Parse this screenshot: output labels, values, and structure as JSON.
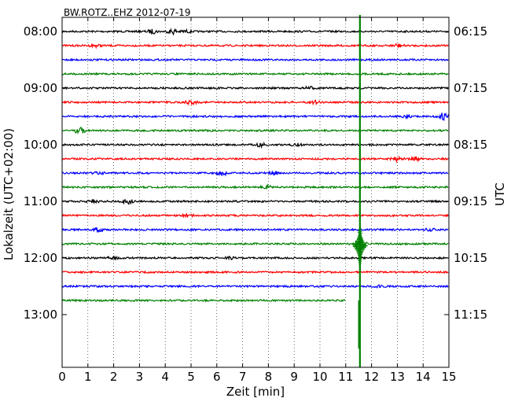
{
  "chart_data": {
    "type": "line",
    "title": "BW.ROTZ..EHZ 2012-07-19",
    "xlabel": "Zeit  [min]",
    "ylabel_left": "Lokalzeit (UTC+02:00)",
    "ylabel_right": "UTC",
    "xlim": [
      0,
      15
    ],
    "x_ticks": [
      "0",
      "1",
      "2",
      "3",
      "4",
      "5",
      "6",
      "7",
      "8",
      "9",
      "10",
      "11",
      "12",
      "13",
      "14",
      "15"
    ],
    "x_grid": "dotted",
    "left_ticks": [
      {
        "label": "08:00",
        "row": 0
      },
      {
        "label": "09:00",
        "row": 4
      },
      {
        "label": "10:00",
        "row": 8
      },
      {
        "label": "11:00",
        "row": 12
      },
      {
        "label": "12:00",
        "row": 16
      },
      {
        "label": "13:00",
        "row": 20
      }
    ],
    "right_ticks": [
      {
        "label": "06:15",
        "row": 0
      },
      {
        "label": "07:15",
        "row": 4
      },
      {
        "label": "08:15",
        "row": 8
      },
      {
        "label": "09:15",
        "row": 12
      },
      {
        "label": "10:15",
        "row": 16
      },
      {
        "label": "11:15",
        "row": 20
      }
    ],
    "row_count": 24,
    "colors": [
      "#000000",
      "#ff0000",
      "#0000ff",
      "#008000"
    ],
    "traces": [
      {
        "row": 0,
        "color": "#000000",
        "x_end": 15,
        "events": [
          {
            "x": 3.5,
            "amp": 0.3
          },
          {
            "x": 4.3,
            "amp": 0.4
          },
          {
            "x": 4.8,
            "amp": 0.2
          }
        ]
      },
      {
        "row": 1,
        "color": "#ff0000",
        "x_end": 15,
        "events": [
          {
            "x": 1.3,
            "amp": 0.2
          },
          {
            "x": 13.0,
            "amp": 0.3
          }
        ]
      },
      {
        "row": 2,
        "color": "#0000ff",
        "x_end": 15,
        "events": []
      },
      {
        "row": 3,
        "color": "#008000",
        "x_end": 15,
        "events": []
      },
      {
        "row": 4,
        "color": "#000000",
        "x_end": 15,
        "events": [
          {
            "x": 9.6,
            "amp": 0.2
          }
        ]
      },
      {
        "row": 5,
        "color": "#ff0000",
        "x_end": 15,
        "events": [
          {
            "x": 5.0,
            "amp": 0.3
          },
          {
            "x": 9.8,
            "amp": 0.2
          }
        ]
      },
      {
        "row": 6,
        "color": "#0000ff",
        "x_end": 15,
        "events": [
          {
            "x": 13.3,
            "amp": 0.2
          },
          {
            "x": 14.8,
            "amp": 0.6
          }
        ]
      },
      {
        "row": 7,
        "color": "#008000",
        "x_end": 15,
        "events": [
          {
            "x": 0.7,
            "amp": 0.5
          }
        ]
      },
      {
        "row": 8,
        "color": "#000000",
        "x_end": 15,
        "events": [
          {
            "x": 7.7,
            "amp": 0.3
          },
          {
            "x": 9.1,
            "amp": 0.2
          }
        ]
      },
      {
        "row": 9,
        "color": "#ff0000",
        "x_end": 15,
        "events": [
          {
            "x": 13.0,
            "amp": 0.4
          },
          {
            "x": 13.7,
            "amp": 0.3
          }
        ]
      },
      {
        "row": 10,
        "color": "#0000ff",
        "x_end": 15,
        "events": [
          {
            "x": 1.4,
            "amp": 0.2
          },
          {
            "x": 6.2,
            "amp": 0.4
          },
          {
            "x": 8.2,
            "amp": 0.3
          }
        ]
      },
      {
        "row": 11,
        "color": "#008000",
        "x_end": 15,
        "events": [
          {
            "x": 7.9,
            "amp": 0.3
          }
        ]
      },
      {
        "row": 12,
        "color": "#000000",
        "x_end": 15,
        "events": [
          {
            "x": 1.2,
            "amp": 0.2
          },
          {
            "x": 2.5,
            "amp": 0.5
          }
        ]
      },
      {
        "row": 13,
        "color": "#ff0000",
        "x_end": 15,
        "events": [
          {
            "x": 4.9,
            "amp": 0.2
          }
        ]
      },
      {
        "row": 14,
        "color": "#0000ff",
        "x_end": 15,
        "events": [
          {
            "x": 1.4,
            "amp": 0.3
          },
          {
            "x": 14.3,
            "amp": 0.2
          }
        ]
      },
      {
        "row": 15,
        "color": "#008000",
        "x_end": 15,
        "events": [
          {
            "x": 11.55,
            "amp": 1.2
          }
        ]
      },
      {
        "row": 16,
        "color": "#000000",
        "x_end": 15,
        "events": [
          {
            "x": 2.0,
            "amp": 0.2
          },
          {
            "x": 6.5,
            "amp": 0.2
          }
        ]
      },
      {
        "row": 17,
        "color": "#ff0000",
        "x_end": 15,
        "events": []
      },
      {
        "row": 18,
        "color": "#0000ff",
        "x_end": 15,
        "events": [
          {
            "x": 12.3,
            "amp": 0.2
          }
        ]
      },
      {
        "row": 19,
        "color": "#008000",
        "x_end": 11.0,
        "events": []
      }
    ],
    "event_marker": {
      "x": 11.55,
      "color": "#008000",
      "row_from": -0.5,
      "row_to": 23.9
    }
  }
}
